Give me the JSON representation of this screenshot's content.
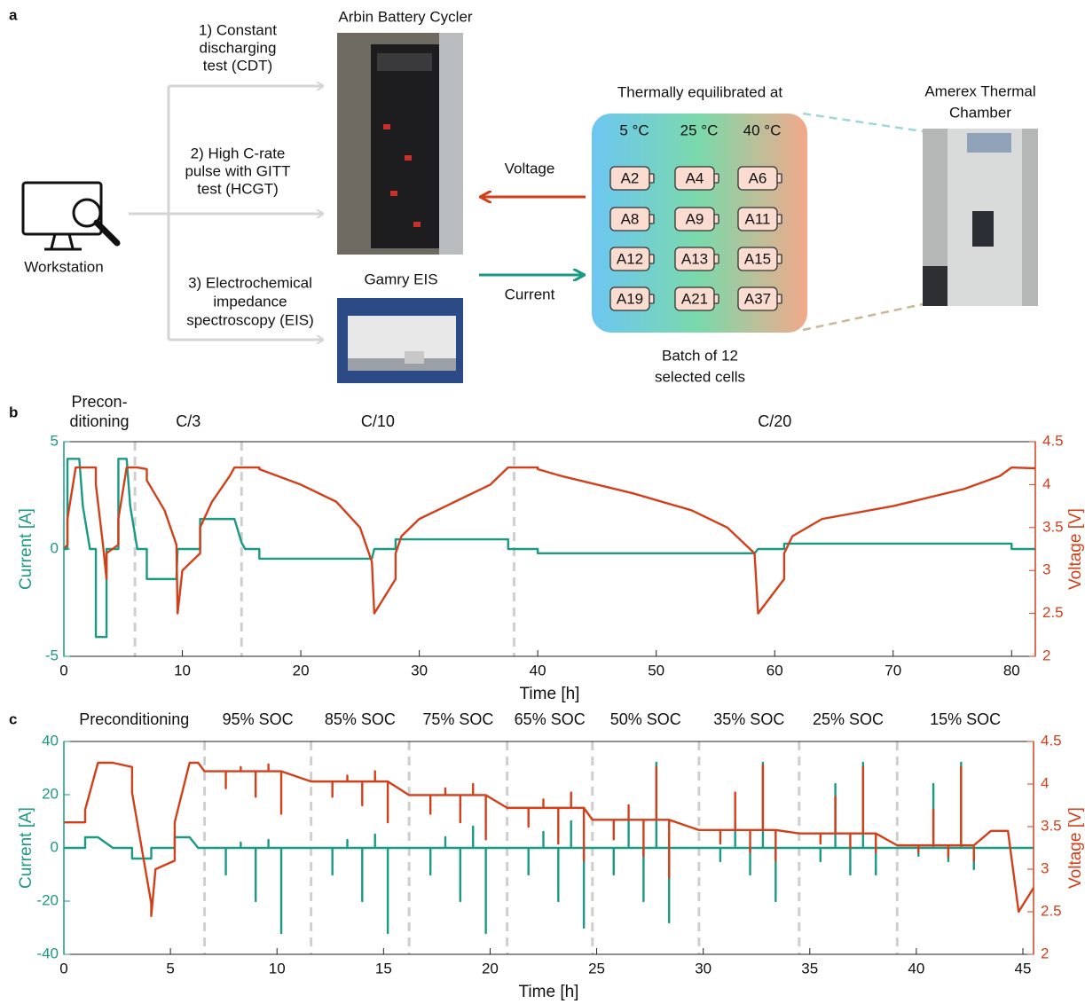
{
  "panel_a": {
    "label": "a",
    "workstation": "Workstation",
    "tests": [
      [
        "1) Constant",
        "discharging",
        "test (CDT)"
      ],
      [
        "2) High C-rate",
        "pulse with GITT",
        "test (HCGT)"
      ],
      [
        "3) Electrochemical",
        "impedance",
        "spectroscopy (EIS)"
      ]
    ],
    "arbin": "Arbin Battery Cycler",
    "gamry": "Gamry EIS",
    "voltage": "Voltage",
    "current": "Current",
    "thermal_title": "Thermally equilibrated at",
    "temps": [
      "5 °C",
      "25 °C",
      "40 °C"
    ],
    "cells": [
      [
        "A2",
        "A4",
        "A6"
      ],
      [
        "A8",
        "A9",
        "A11"
      ],
      [
        "A12",
        "A13",
        "A15"
      ],
      [
        "A19",
        "A21",
        "A37"
      ]
    ],
    "batch": [
      "Batch of 12",
      "selected cells"
    ],
    "chamber": [
      "Amerex Thermal",
      "Chamber"
    ]
  },
  "chart_data": [
    {
      "type": "line",
      "panel_label": "b",
      "xlabel": "Time [h]",
      "ylabel": "Current [A]",
      "y2label": "Voltage [V]",
      "phase_labels": [
        [
          "Precon-",
          "ditioning"
        ],
        [
          "C/3"
        ],
        [
          "C/10"
        ],
        [
          "C/20"
        ]
      ],
      "boundaries": [
        6,
        15,
        38
      ],
      "xlim": [
        0,
        82
      ],
      "xticks": [
        0,
        10,
        20,
        30,
        40,
        50,
        60,
        70,
        80
      ],
      "ylim": [
        -5,
        5
      ],
      "yticks": [
        -5,
        0,
        5
      ],
      "y2lim": [
        2,
        4.5
      ],
      "y2ticks": [
        2,
        2.5,
        3,
        3.5,
        4,
        4.5
      ],
      "x": [
        0,
        0.3,
        0.3,
        1.0,
        1.3,
        1.6,
        2.2,
        2.7,
        2.7,
        3.3,
        3.6,
        3.6,
        4.6,
        4.6,
        5.3,
        5.6,
        6.2,
        7,
        7,
        8.5,
        9.5,
        9.6,
        10,
        11.5,
        11.5,
        12.5,
        14,
        14.4,
        15,
        15.3,
        16.5,
        16.5,
        20,
        23,
        25,
        26,
        26.2,
        28,
        28,
        28.5,
        30,
        33,
        36,
        37.5,
        37.5,
        40,
        40,
        42,
        48,
        53,
        56,
        58.3,
        58.6,
        60.8,
        60.8,
        61.5,
        64,
        70,
        76,
        79,
        80,
        80,
        82
      ],
      "series": [
        {
          "color": "#1a9985",
          "axis": "y",
          "values": [
            0,
            0,
            4.2,
            4.2,
            4.2,
            2,
            0,
            0,
            -4.1,
            -4.1,
            -4.1,
            0,
            0,
            4.2,
            4.2,
            2,
            0,
            0,
            -1.4,
            -1.4,
            -1.4,
            0,
            0,
            0,
            1.4,
            1.4,
            1.4,
            1.4,
            0.3,
            0,
            0,
            -0.45,
            -0.45,
            -0.45,
            -0.45,
            -0.45,
            0,
            0,
            0.45,
            0.45,
            0.45,
            0.45,
            0.45,
            0.45,
            0,
            0,
            -0.2,
            -0.2,
            -0.2,
            -0.2,
            -0.2,
            -0.2,
            0,
            0,
            0.25,
            0.25,
            0.25,
            0.25,
            0.25,
            0.25,
            0.25,
            0,
            0
          ]
        },
        {
          "color": "#d2401a",
          "axis": "y2",
          "values": [
            3.25,
            3.3,
            3.6,
            4.2,
            4.2,
            4.2,
            4.2,
            4.2,
            4.0,
            3.3,
            2.9,
            3.2,
            3.3,
            3.6,
            4.2,
            4.2,
            4.2,
            4.18,
            4.05,
            3.7,
            3.3,
            2.5,
            3.0,
            3.2,
            3.5,
            3.8,
            4.1,
            4.2,
            4.2,
            4.2,
            4.2,
            4.18,
            4.0,
            3.8,
            3.5,
            3.1,
            2.5,
            2.9,
            3.2,
            3.4,
            3.6,
            3.8,
            4.0,
            4.2,
            4.2,
            4.2,
            4.18,
            4.1,
            3.9,
            3.7,
            3.5,
            3.2,
            2.5,
            2.9,
            3.2,
            3.4,
            3.6,
            3.75,
            3.95,
            4.1,
            4.2,
            4.2,
            4.19
          ]
        }
      ]
    },
    {
      "type": "line",
      "panel_label": "c",
      "xlabel": "Time [h]",
      "ylabel": "Current [A]",
      "y2label": "Voltage [V]",
      "phase_labels": [
        [
          "Preconditioning"
        ],
        [
          "95% SOC"
        ],
        [
          "85% SOC"
        ],
        [
          "75% SOC"
        ],
        [
          "65% SOC"
        ],
        [
          "50% SOC"
        ],
        [
          "35% SOC"
        ],
        [
          "25% SOC"
        ],
        [
          "15% SOC"
        ]
      ],
      "boundaries": [
        6.6,
        11.6,
        16.2,
        20.8,
        24.8,
        29.8,
        34.5,
        39.1
      ],
      "xlim": [
        0,
        45.5
      ],
      "xticks": [
        0,
        5,
        10,
        15,
        20,
        25,
        30,
        35,
        40,
        45
      ],
      "ylim": [
        -40,
        40
      ],
      "yticks": [
        -40,
        -20,
        0,
        20,
        40
      ],
      "y2lim": [
        2,
        4.5
      ],
      "y2ticks": [
        2,
        2.5,
        3,
        3.5,
        4,
        4.5
      ],
      "x": [
        0,
        1,
        1,
        1.6,
        2.3,
        3.2,
        3.2,
        4.1,
        4.1,
        4.3,
        5.2,
        5.2,
        5.9,
        6.3,
        6.6,
        7.6,
        7.6,
        7.6,
        8.3,
        8.3,
        8.3,
        9,
        9,
        9,
        9.6,
        9.6,
        9.6,
        10.2,
        10.2,
        10.2,
        11.6,
        12.6,
        12.6,
        12.6,
        13.3,
        13.3,
        13.3,
        14,
        14,
        14,
        14.6,
        14.6,
        14.6,
        15.2,
        15.2,
        15.2,
        16.2,
        17.2,
        17.2,
        17.2,
        17.9,
        17.9,
        17.9,
        18.6,
        18.6,
        18.6,
        19.2,
        19.2,
        19.2,
        19.8,
        19.8,
        19.8,
        20.8,
        21.8,
        21.8,
        21.8,
        22.5,
        22.5,
        22.5,
        23.2,
        23.2,
        23.2,
        23.8,
        23.8,
        23.8,
        24.4,
        24.4,
        24.4,
        24.8,
        25.8,
        25.8,
        25.8,
        26.5,
        26.5,
        26.5,
        27.2,
        27.2,
        27.2,
        27.8,
        27.8,
        27.8,
        28.4,
        28.4,
        28.4,
        29.8,
        30.8,
        30.8,
        30.8,
        31.5,
        31.5,
        31.5,
        32.2,
        32.2,
        32.2,
        32.8,
        32.8,
        32.8,
        33.4,
        33.4,
        33.4,
        34.5,
        35.5,
        35.5,
        35.5,
        36.2,
        36.2,
        36.2,
        36.9,
        36.9,
        36.9,
        37.5,
        37.5,
        37.5,
        38.1,
        38.1,
        38.1,
        39.1,
        40.1,
        40.1,
        40.1,
        40.8,
        40.8,
        40.8,
        41.5,
        41.5,
        41.5,
        42.1,
        42.1,
        42.1,
        42.7,
        42.7,
        42.7,
        43.5,
        44.3,
        44.8,
        45.5
      ],
      "series": [
        {
          "color": "#1a9985",
          "axis": "y",
          "values": [
            0,
            0,
            4,
            4,
            0,
            0,
            -4,
            -4,
            0,
            0,
            0,
            4,
            4,
            0,
            0,
            0,
            -10,
            0,
            0,
            2,
            0,
            0,
            -20,
            0,
            0,
            3,
            0,
            0,
            -32,
            0,
            0,
            0,
            -10,
            0,
            0,
            3,
            0,
            0,
            -20,
            0,
            0,
            5,
            0,
            0,
            -32,
            0,
            0,
            0,
            -10,
            0,
            0,
            4,
            0,
            0,
            -20,
            0,
            0,
            8,
            0,
            0,
            -32,
            0,
            0,
            0,
            -10,
            0,
            0,
            6,
            0,
            0,
            -20,
            0,
            0,
            10,
            0,
            0,
            -30,
            0,
            0,
            0,
            -10,
            0,
            0,
            10,
            0,
            0,
            -20,
            0,
            0,
            32,
            0,
            0,
            -28,
            0,
            0,
            0,
            -5,
            0,
            0,
            10,
            0,
            0,
            -10,
            0,
            0,
            32,
            0,
            0,
            -20,
            0,
            0,
            0,
            -5,
            0,
            0,
            24,
            0,
            0,
            -10,
            0,
            0,
            32,
            0,
            0,
            -10,
            0,
            0,
            0,
            -3,
            0,
            0,
            24,
            0,
            0,
            -5,
            0,
            0,
            32,
            0,
            0,
            -8,
            0,
            0,
            0,
            0,
            0
          ]
        },
        {
          "color": "#d2401a",
          "axis": "y2",
          "values": [
            3.55,
            3.55,
            3.7,
            4.25,
            4.25,
            4.2,
            3.9,
            2.6,
            2.45,
            3.0,
            3.1,
            3.55,
            4.25,
            4.25,
            4.15,
            4.15,
            3.95,
            4.15,
            4.15,
            4.2,
            4.15,
            4.15,
            3.85,
            4.15,
            4.15,
            4.23,
            4.15,
            4.15,
            3.65,
            4.15,
            4.03,
            4.03,
            3.85,
            4.03,
            4.03,
            4.1,
            4.03,
            4.03,
            3.75,
            4.03,
            4.03,
            4.15,
            4.03,
            4.03,
            3.55,
            4.03,
            3.87,
            3.87,
            3.65,
            3.87,
            3.87,
            3.95,
            3.87,
            3.87,
            3.55,
            3.87,
            3.87,
            4.0,
            3.87,
            3.87,
            3.35,
            3.87,
            3.72,
            3.72,
            3.5,
            3.72,
            3.72,
            3.82,
            3.72,
            3.72,
            3.3,
            3.72,
            3.72,
            3.9,
            3.72,
            3.72,
            3.1,
            3.72,
            3.58,
            3.58,
            3.35,
            3.58,
            3.58,
            3.75,
            3.58,
            3.58,
            3.15,
            3.58,
            3.58,
            4.2,
            3.58,
            3.58,
            2.9,
            3.58,
            3.46,
            3.46,
            3.3,
            3.46,
            3.46,
            3.9,
            3.46,
            3.46,
            3.2,
            3.46,
            3.46,
            4.22,
            3.46,
            3.46,
            3.1,
            3.46,
            3.42,
            3.42,
            3.3,
            3.42,
            3.42,
            3.85,
            3.42,
            3.42,
            3.25,
            3.42,
            3.42,
            4.2,
            3.42,
            3.42,
            3.2,
            3.42,
            3.28,
            3.28,
            3.2,
            3.28,
            3.28,
            3.7,
            3.28,
            3.28,
            3.15,
            3.28,
            3.28,
            4.2,
            3.28,
            3.28,
            3.1,
            3.28,
            3.45,
            3.45,
            2.5,
            2.78
          ]
        }
      ]
    }
  ]
}
